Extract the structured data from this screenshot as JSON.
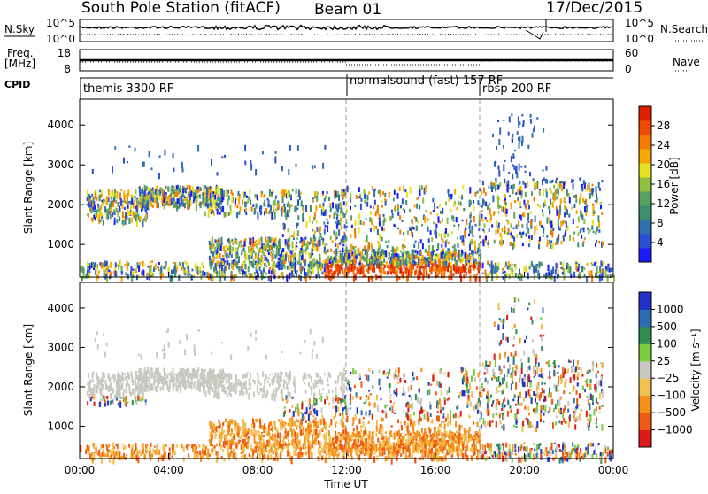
{
  "header": {
    "station": "South Pole Station (fitACF)",
    "beam": "Beam 01",
    "date": "17/Dec/2015"
  },
  "top_panels": {
    "nsky": {
      "label": "N.Sky",
      "ticks": [
        "10^5",
        "10^0"
      ]
    },
    "nsearch": {
      "label": "N.Search",
      "ticks": [
        "10^5",
        "10^0"
      ]
    },
    "freq": {
      "label_line1": "Freq.",
      "label_line2": "[MHz]",
      "ticks": [
        "18",
        "8"
      ]
    },
    "nave": {
      "label": "Nave",
      "ticks": [
        "60",
        "0"
      ]
    },
    "cpid": {
      "label": "CPID"
    }
  },
  "modes": [
    {
      "name": "themis 3300 RF",
      "start_hour": 0
    },
    {
      "name": "normalsound (fast) 157 RF",
      "start_hour": 12
    },
    {
      "name": "rbsp 200 RF",
      "start_hour": 18
    }
  ],
  "chart_data": [
    {
      "type": "heatmap",
      "panel": "power",
      "ylabel": "Slant Range [km]",
      "xlabel": "",
      "ylim": [
        180,
        4650
      ],
      "xlim_hours": [
        0,
        24
      ],
      "yticks": [
        1000,
        2000,
        3000,
        4000
      ],
      "colorbar": {
        "label": "Power [dB]",
        "range": [
          0,
          32
        ],
        "ticks": [
          4,
          8,
          12,
          16,
          20,
          24,
          28
        ],
        "colors": [
          "#1a1aff",
          "#2b4fd4",
          "#2f6fb0",
          "#3d8f70",
          "#5aa060",
          "#8fc040",
          "#e8e020",
          "#f6a800",
          "#f57a00",
          "#f04a00",
          "#e01e00"
        ]
      }
    },
    {
      "type": "heatmap",
      "panel": "velocity",
      "ylabel": "Slant Range [km]",
      "xlabel": "Time UT",
      "ylim": [
        180,
        4650
      ],
      "xlim_hours": [
        0,
        24
      ],
      "yticks": [
        1000,
        2000,
        3000,
        4000
      ],
      "xticks": [
        "00:00",
        "04:00",
        "08:00",
        "12:00",
        "16:00",
        "20:00",
        "00:00"
      ],
      "colorbar": {
        "label": "Velocity [m s⁻¹]",
        "tick_labels": [
          "1000",
          "500",
          "100",
          "25",
          "−25",
          "−100",
          "−500",
          "−1000"
        ],
        "colors": [
          "#2030c8",
          "#2a6db0",
          "#2e8f50",
          "#7ccc40",
          "#c8c8c0",
          "#f2c050",
          "#f59018",
          "#f05a10",
          "#e01818"
        ]
      }
    }
  ]
}
